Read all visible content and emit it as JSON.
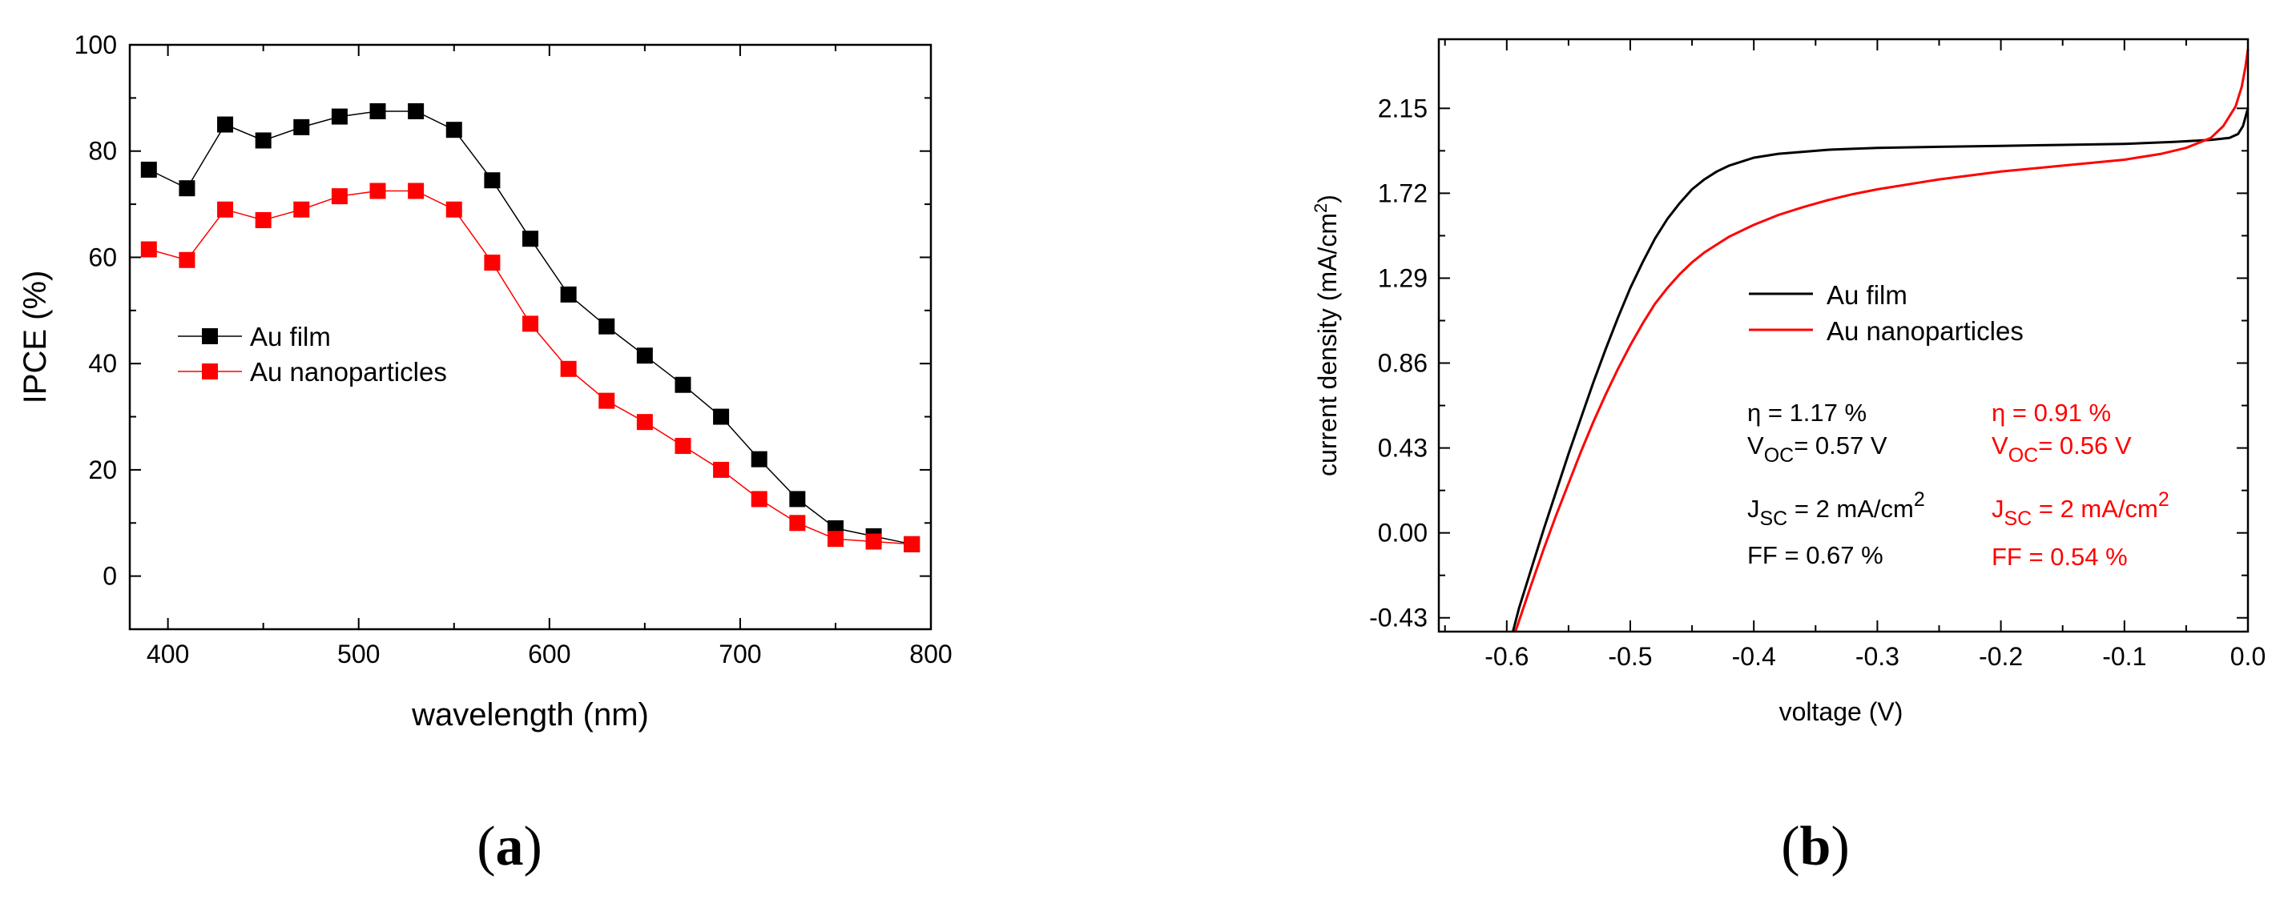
{
  "colors": {
    "black": "#000000",
    "red": "#ff0000"
  },
  "chart_data": [
    {
      "type": "line",
      "panel": "a",
      "panel_label": "(a)",
      "panel_label_open": "(",
      "panel_label_letter": "a",
      "panel_label_close": ")",
      "title": "",
      "xlabel": "wavelength (nm)",
      "ylabel": "IPCE (%)",
      "xlim": [
        380,
        800
      ],
      "ylim": [
        -10,
        100
      ],
      "xticks": [
        400,
        500,
        600,
        700,
        800
      ],
      "yticks": [
        0,
        20,
        40,
        60,
        80,
        100
      ],
      "grid": false,
      "legend_position": "middle-left",
      "x": [
        390,
        410,
        430,
        450,
        470,
        490,
        510,
        530,
        550,
        570,
        590,
        610,
        630,
        650,
        670,
        690,
        710,
        730,
        750,
        770,
        790
      ],
      "series": [
        {
          "name": "Au film",
          "color": "#000000",
          "marker": "square",
          "values": [
            76.5,
            73,
            85,
            82,
            84.5,
            86.5,
            87.5,
            87.5,
            84,
            74.5,
            63.5,
            53,
            47,
            41.5,
            36,
            30,
            22,
            14.5,
            9,
            7.5,
            6
          ]
        },
        {
          "name": "Au nanoparticles",
          "color": "#ff0000",
          "marker": "square",
          "values": [
            61.5,
            59.5,
            69,
            67,
            69,
            71.5,
            72.5,
            72.5,
            69,
            59,
            47.5,
            39,
            33,
            29,
            24.5,
            20,
            14.5,
            10,
            7,
            6.5,
            6
          ]
        }
      ]
    },
    {
      "type": "line",
      "panel": "b",
      "panel_label": "(b)",
      "panel_label_open": "(",
      "panel_label_letter": "b",
      "panel_label_close": ")",
      "title": "",
      "xlabel": "voltage (V)",
      "ylabel": "current density (mA/cm²)",
      "ylabel_main": "current density (mA/cm",
      "ylabel_sup": "2",
      "ylabel_end": ")",
      "xlim": [
        -0.655,
        0.0
      ],
      "ylim": [
        -0.5,
        2.5
      ],
      "xticks": [
        -0.6,
        -0.5,
        -0.4,
        -0.3,
        -0.2,
        -0.1,
        0.0
      ],
      "xtick_labels": [
        "-0.6",
        "-0.5",
        "-0.4",
        "-0.3",
        "-0.2",
        "-0.1",
        "0.0"
      ],
      "yticks": [
        -0.43,
        0.0,
        0.43,
        0.86,
        1.29,
        1.72,
        2.15
      ],
      "ytick_labels": [
        "-0.43",
        "0.00",
        "0.43",
        "0.86",
        "1.29",
        "1.72",
        "2.15"
      ],
      "grid": false,
      "legend_position": "center",
      "series": [
        {
          "name": "Au film",
          "color": "#000000",
          "x": [
            -0.595,
            -0.59,
            -0.58,
            -0.57,
            -0.56,
            -0.55,
            -0.54,
            -0.53,
            -0.52,
            -0.51,
            -0.5,
            -0.49,
            -0.48,
            -0.47,
            -0.46,
            -0.45,
            -0.44,
            -0.43,
            -0.42,
            -0.41,
            -0.4,
            -0.38,
            -0.36,
            -0.34,
            -0.32,
            -0.3,
            -0.25,
            -0.2,
            -0.15,
            -0.1,
            -0.06,
            -0.03,
            -0.015,
            -0.008,
            -0.004,
            0.0
          ],
          "values": [
            -0.5,
            -0.38,
            -0.18,
            0.02,
            0.21,
            0.4,
            0.58,
            0.76,
            0.93,
            1.09,
            1.24,
            1.37,
            1.49,
            1.59,
            1.67,
            1.74,
            1.79,
            1.83,
            1.86,
            1.88,
            1.9,
            1.92,
            1.93,
            1.94,
            1.945,
            1.95,
            1.955,
            1.96,
            1.965,
            1.97,
            1.98,
            1.99,
            2.0,
            2.02,
            2.06,
            2.15
          ]
        },
        {
          "name": "Au nanoparticles",
          "color": "#ff0000",
          "x": [
            -0.593,
            -0.58,
            -0.57,
            -0.56,
            -0.55,
            -0.54,
            -0.53,
            -0.52,
            -0.51,
            -0.5,
            -0.49,
            -0.48,
            -0.47,
            -0.46,
            -0.45,
            -0.44,
            -0.43,
            -0.42,
            -0.4,
            -0.38,
            -0.36,
            -0.34,
            -0.32,
            -0.3,
            -0.25,
            -0.2,
            -0.15,
            -0.1,
            -0.07,
            -0.05,
            -0.03,
            -0.02,
            -0.01,
            -0.005,
            -0.002,
            0.0
          ],
          "values": [
            -0.5,
            -0.26,
            -0.08,
            0.09,
            0.25,
            0.41,
            0.56,
            0.7,
            0.83,
            0.95,
            1.06,
            1.16,
            1.24,
            1.31,
            1.37,
            1.42,
            1.46,
            1.5,
            1.56,
            1.61,
            1.65,
            1.685,
            1.715,
            1.74,
            1.79,
            1.83,
            1.86,
            1.89,
            1.92,
            1.95,
            2.0,
            2.06,
            2.16,
            2.26,
            2.36,
            2.45
          ]
        }
      ]
    }
  ],
  "annotations": {
    "film": {
      "eta": "η = 1.17 %",
      "voc_main": "V",
      "voc_sub": "OC",
      "voc_value": "= 0.57 V",
      "jsc_main": "J",
      "jsc_sub": "SC",
      "jsc_value": " = 2 mA/cm",
      "jsc_sup": "2",
      "ff": "FF = 0.67 %"
    },
    "nano": {
      "eta": "η = 0.91 %",
      "voc_main": "V",
      "voc_sub": "OC",
      "voc_value": "= 0.56 V",
      "jsc_main": "J",
      "jsc_sub": "SC",
      "jsc_value": " = 2 mA/cm",
      "jsc_sup": "2",
      "ff": "FF = 0.54 %"
    }
  }
}
